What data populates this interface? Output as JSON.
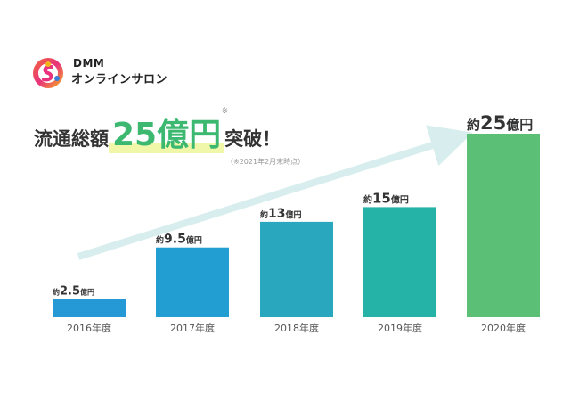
{
  "brand": {
    "top": "DMM",
    "main": "オンラインサロン"
  },
  "headline": {
    "prefix": "流通総額",
    "highlight": "25億円",
    "asterisk": "※",
    "suffix": "突破！",
    "note": "（※2021年2月末時点）"
  },
  "colors": {
    "highlight_text": "#3cb871",
    "arrow": "#d8eeee"
  },
  "chart_data": {
    "type": "bar",
    "categories": [
      "2016年度",
      "2017年度",
      "2018年度",
      "2019年度",
      "2020年度"
    ],
    "values": [
      2.5,
      9.5,
      13,
      15,
      25
    ],
    "unit": "億円",
    "value_prefix": "約",
    "value_labels": [
      "2.5",
      "9.5",
      "13",
      "15",
      "25"
    ],
    "colors": [
      "#2499d6",
      "#229ed2",
      "#28a7be",
      "#25b3a8",
      "#5bbf75"
    ],
    "ylim": [
      0,
      25
    ],
    "grid": false,
    "legend": "none"
  }
}
